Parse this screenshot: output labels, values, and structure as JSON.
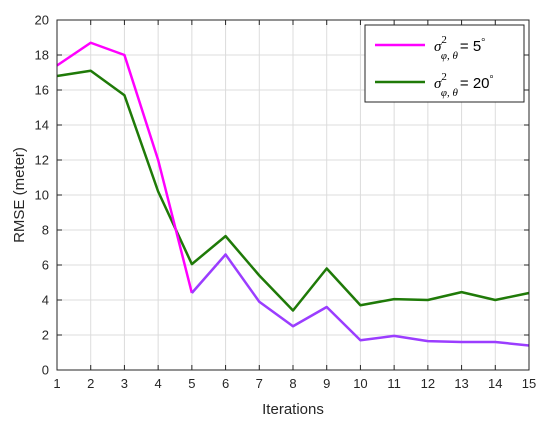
{
  "chart_data": {
    "type": "line",
    "xlabel": "Iterations",
    "ylabel": "RMSE (meter)",
    "x": [
      1,
      2,
      3,
      4,
      5,
      6,
      7,
      8,
      9,
      10,
      11,
      12,
      13,
      14,
      15
    ],
    "xlim": [
      1,
      15
    ],
    "ylim": [
      0,
      20
    ],
    "xticks": [
      "1",
      "2",
      "3",
      "4",
      "5",
      "6",
      "7",
      "8",
      "9",
      "10",
      "11",
      "12",
      "13",
      "14",
      "15"
    ],
    "yticks": [
      "0",
      "2",
      "4",
      "6",
      "8",
      "10",
      "12",
      "14",
      "16",
      "18",
      "20"
    ],
    "grid": true,
    "legend_position": "top-right",
    "series": [
      {
        "name": "σ²φ,θ = 5°",
        "legend": {
          "sym": "σ",
          "sup": "2",
          "sub": "φ, θ",
          "value": "= 5",
          "unit": "°"
        },
        "color": "#ff00ff",
        "color_tail": "#9b3dff",
        "values": [
          17.4,
          18.7,
          18.0,
          12.0,
          4.4,
          6.6,
          3.9,
          2.5,
          3.6,
          1.7,
          1.95,
          1.65,
          1.6,
          1.6,
          1.4
        ]
      },
      {
        "name": "σ²φ,θ = 20°",
        "legend": {
          "sym": "σ",
          "sup": "2",
          "sub": "φ, θ",
          "value": "= 20",
          "unit": "°"
        },
        "color": "#1f7a08",
        "values": [
          16.8,
          17.1,
          15.7,
          10.2,
          6.05,
          7.65,
          5.4,
          3.4,
          5.8,
          3.7,
          4.05,
          4.0,
          4.45,
          4.0,
          4.4
        ]
      }
    ]
  }
}
